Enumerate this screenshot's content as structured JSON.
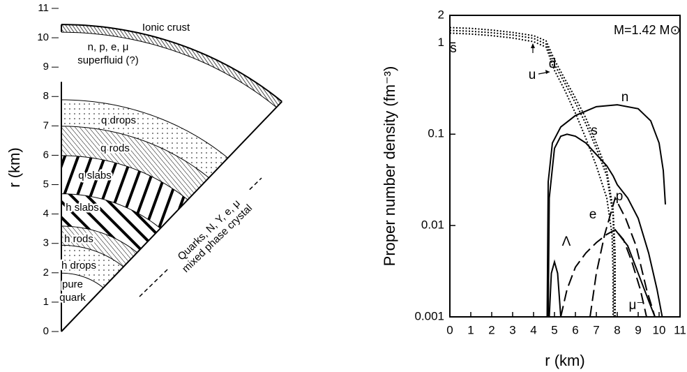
{
  "diagram": {
    "axis_label": "r (km)",
    "ylim": [
      0,
      11
    ],
    "yticks": [
      0,
      1,
      2,
      3,
      4,
      5,
      6,
      7,
      8,
      9,
      10,
      11
    ],
    "layers": [
      {
        "label": [
          "pure",
          "quark"
        ],
        "r": [
          0,
          2
        ],
        "fill": "none"
      },
      {
        "label": [
          "h drops"
        ],
        "r": [
          2,
          2.95
        ],
        "fill": "dots"
      },
      {
        "label": [
          "h rods"
        ],
        "r": [
          2.95,
          3.6
        ],
        "fill": "rods"
      },
      {
        "label": [
          "h slabs"
        ],
        "r": [
          3.6,
          4.7
        ],
        "fill": "slabs-h"
      },
      {
        "label": [
          "q slabs"
        ],
        "r": [
          4.7,
          6.0
        ],
        "fill": "slabs-q"
      },
      {
        "label": [
          "q rods"
        ],
        "r": [
          6.0,
          7.0
        ],
        "fill": "rods"
      },
      {
        "label": [
          "q drops"
        ],
        "r": [
          7.0,
          7.9
        ],
        "fill": "dots"
      },
      {
        "label": [
          "n, p, e, μ",
          "superfluid (?)"
        ],
        "r": [
          7.9,
          10.2
        ],
        "fill": "none"
      },
      {
        "label": [
          "Ionic crust"
        ],
        "r": [
          10.2,
          10.45
        ],
        "fill": "crust"
      }
    ],
    "mixed_phase_label": [
      "Quarks, N, Y, e, μ",
      "mixed phase crystal"
    ]
  },
  "chart_data": {
    "type": "line",
    "annotation": "M=1.42 M⊙",
    "x_label": "r (km)",
    "y_label": "Proper number density (fm⁻³)",
    "xlim": [
      0,
      11
    ],
    "xticks": [
      0,
      1,
      2,
      3,
      4,
      5,
      6,
      7,
      8,
      9,
      10,
      11
    ],
    "ylim": [
      0.001,
      2
    ],
    "yticks": [
      0.001,
      0.01,
      0.1,
      1,
      2
    ],
    "log_y": true,
    "grid": false,
    "color": "#000000",
    "series": [
      {
        "name": "u",
        "style": "dotted",
        "x": [
          0,
          1,
          2,
          3,
          4,
          4.6,
          5,
          5.5,
          6,
          6.5,
          7,
          7.5,
          7.8,
          7.9,
          7.9
        ],
        "values": [
          1.47,
          1.44,
          1.38,
          1.3,
          1.2,
          1.05,
          0.65,
          0.4,
          0.25,
          0.15,
          0.08,
          0.04,
          0.015,
          0.005,
          0.001
        ]
      },
      {
        "name": "d",
        "style": "dotted",
        "x": [
          0,
          1,
          2,
          3,
          4,
          4.6,
          5,
          5.5,
          6,
          6.5,
          7,
          7.5,
          7.8,
          7.85,
          7.85
        ],
        "values": [
          1.37,
          1.34,
          1.29,
          1.22,
          1.12,
          0.97,
          0.58,
          0.36,
          0.22,
          0.13,
          0.07,
          0.035,
          0.013,
          0.004,
          0.001
        ]
      },
      {
        "name": "s",
        "style": "dotted",
        "x": [
          0,
          1,
          2,
          3,
          4,
          4.6,
          5,
          5.5,
          6,
          6.5,
          7,
          7.5,
          7.75,
          7.8,
          7.8
        ],
        "values": [
          1.28,
          1.25,
          1.2,
          1.13,
          1.03,
          0.9,
          0.5,
          0.3,
          0.17,
          0.09,
          0.045,
          0.02,
          0.008,
          0.003,
          0.001
        ]
      },
      {
        "name": "n",
        "style": "solid",
        "x": [
          4.65,
          4.7,
          4.9,
          5.3,
          6,
          7,
          8,
          9,
          9.6,
          10,
          10.2,
          10.3
        ],
        "values": [
          0.001,
          0.03,
          0.08,
          0.12,
          0.16,
          0.2,
          0.21,
          0.19,
          0.14,
          0.08,
          0.04,
          0.017
        ]
      },
      {
        "name": "p",
        "style": "solid",
        "x": [
          4.7,
          4.75,
          5,
          5.3,
          5.6,
          6,
          6.5,
          7,
          7.5,
          7.8,
          8,
          8.5,
          9,
          9.5,
          9.9,
          10.15
        ],
        "values": [
          0.001,
          0.02,
          0.07,
          0.095,
          0.1,
          0.095,
          0.08,
          0.06,
          0.045,
          0.035,
          0.028,
          0.02,
          0.012,
          0.005,
          0.002,
          0.001
        ]
      },
      {
        "name": "Λ",
        "style": "dashed",
        "x": [
          5.3,
          5.6,
          6,
          6.5,
          7,
          7.5,
          7.9,
          8.3,
          8.7,
          9.1,
          9.4
        ],
        "values": [
          0.001,
          0.002,
          0.0035,
          0.005,
          0.0065,
          0.008,
          0.009,
          0.007,
          0.004,
          0.002,
          0.001
        ]
      },
      {
        "name": "e",
        "style": "dashed",
        "x": [
          6.7,
          7,
          7.4,
          7.9,
          8.4,
          8.9,
          9.4,
          9.8
        ],
        "values": [
          0.001,
          0.003,
          0.008,
          0.02,
          0.012,
          0.006,
          0.002,
          0.001
        ]
      },
      {
        "name": "μ⁻",
        "style": "solid",
        "x": [
          7.9,
          8.5,
          9,
          9.5,
          9.8
        ],
        "values": [
          0.009,
          0.006,
          0.003,
          0.0015,
          0.001
        ]
      },
      {
        "style": "solid",
        "x": [
          4.75,
          4.85,
          5,
          5.15,
          5.3
        ],
        "values": [
          0.001,
          0.003,
          0.004,
          0.003,
          0.001
        ]
      }
    ]
  }
}
